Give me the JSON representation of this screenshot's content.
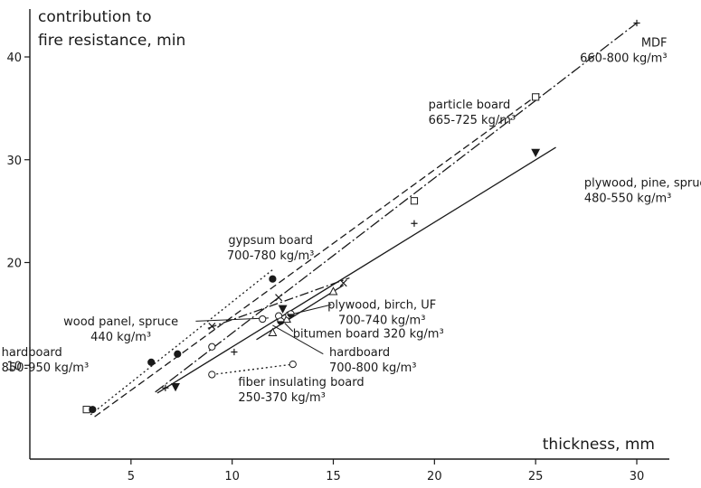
{
  "chart_data": {
    "type": "scatter",
    "ylabel_lines": [
      "contribution to",
      "fire resistance, min"
    ],
    "xlabel": "thickness, mm",
    "xlim": [
      0,
      32
    ],
    "ylim": [
      0,
      45
    ],
    "x_ticks": [
      5,
      10,
      15,
      20,
      25,
      30
    ],
    "y_ticks": [
      10,
      20,
      30,
      40
    ],
    "grid": false,
    "series": [
      {
        "name": "MDF",
        "color": "#1a1a1a",
        "dash": "12 3 2 3",
        "marker": "plus",
        "points": [
          [
            6.7,
            7.8
          ],
          [
            10.1,
            11.3
          ],
          [
            19.0,
            23.8
          ],
          [
            30.0,
            43.3
          ]
        ],
        "line": [
          [
            6.2,
            7.4
          ],
          [
            30.0,
            43.3
          ]
        ]
      },
      {
        "name": "particle board",
        "color": "#1a1a1a",
        "dash": "8 4",
        "marker": "square",
        "points": [
          [
            2.8,
            5.7
          ],
          [
            19.0,
            26.0
          ],
          [
            25.0,
            36.1
          ]
        ],
        "line": [
          [
            3.2,
            5.0
          ],
          [
            25.3,
            36.6
          ]
        ]
      },
      {
        "name": "plywood, pine, spruce",
        "color": "#1a1a1a",
        "dash": "",
        "marker": "triangle-down",
        "points": [
          [
            7.2,
            7.9
          ],
          [
            12.5,
            15.5
          ],
          [
            25.0,
            30.7
          ]
        ],
        "line": [
          [
            6.3,
            7.3
          ],
          [
            26.0,
            31.2
          ]
        ]
      },
      {
        "name": "plywood, birch, UF",
        "color": "#1a1a1a",
        "dash": "",
        "marker": "triangle",
        "points": [
          [
            12.0,
            13.2
          ],
          [
            12.7,
            14.5
          ],
          [
            15.0,
            17.2
          ]
        ],
        "line": [
          [
            11.2,
            12.5
          ],
          [
            15.5,
            17.8
          ]
        ]
      },
      {
        "name": "gypsum board",
        "color": "#1a1a1a",
        "dash": "10 3 2 3",
        "marker": "x",
        "points": [
          [
            9.0,
            13.8
          ],
          [
            12.3,
            16.6
          ],
          [
            15.5,
            18.0
          ]
        ],
        "line": [
          [
            8.8,
            13.6
          ],
          [
            15.8,
            18.5
          ]
        ]
      },
      {
        "name": "hardboard",
        "color": "#1a1a1a",
        "dash": "2 3",
        "marker": "filled-circle",
        "points": [
          [
            3.1,
            5.7
          ],
          [
            6.0,
            10.3
          ],
          [
            7.3,
            11.1
          ],
          [
            12.0,
            18.4
          ]
        ],
        "line": [
          [
            3.0,
            5.2
          ],
          [
            12.0,
            19.3
          ]
        ]
      },
      {
        "name": "fiber insulating board",
        "color": "#1a1a1a",
        "dash": "2 3",
        "marker": "circle",
        "points": [
          [
            9.0,
            9.1
          ],
          [
            13.0,
            10.1
          ]
        ],
        "line": [
          [
            9.0,
            9.1
          ],
          [
            13.0,
            10.1
          ]
        ]
      },
      {
        "name": "wood panel, spruce",
        "color": "#1a1a1a",
        "dash": "",
        "marker": "circle",
        "points": [
          [
            9.0,
            11.8
          ],
          [
            11.5,
            14.5
          ],
          [
            12.3,
            14.8
          ],
          [
            12.8,
            14.9
          ]
        ],
        "line": []
      },
      {
        "name": "bitumen board",
        "color": "#1a1a1a",
        "dash": "",
        "marker": "half-circle",
        "points": [
          [
            12.4,
            14.3
          ],
          [
            12.9,
            15.0
          ]
        ],
        "line": []
      }
    ],
    "annotations": [
      {
        "id": "mdf",
        "lines": [
          "MDF",
          "660-800 kg/m³"
        ],
        "anchor": "end",
        "at": [
          31.5,
          41.0
        ],
        "leader": []
      },
      {
        "id": "particle",
        "lines": [
          "particle board",
          "665-725 kg/m³"
        ],
        "anchor": "start",
        "at": [
          19.7,
          35.0
        ],
        "leader": []
      },
      {
        "id": "plywood-pine",
        "lines": [
          "plywood, pine, spruce",
          "480-550 kg/m³"
        ],
        "anchor": "start",
        "at": [
          27.4,
          27.4
        ],
        "leader": []
      },
      {
        "id": "gypsum",
        "lines": [
          "gypsum board",
          "700-780 kg/m³"
        ],
        "anchor": "middle",
        "at": [
          11.9,
          21.8
        ],
        "leader": []
      },
      {
        "id": "plywood-birch",
        "lines": [
          "plywood, birch, UF",
          "700-740 kg/m³"
        ],
        "anchor": "middle",
        "at": [
          17.4,
          15.5
        ],
        "leader": [
          [
            14.9,
            15.9
          ],
          [
            12.8,
            14.9
          ]
        ]
      },
      {
        "id": "wood-panel",
        "lines": [
          "wood panel, spruce",
          "440 kg/m³"
        ],
        "anchor": "middle",
        "at": [
          4.5,
          13.9
        ],
        "leader": [
          [
            8.2,
            14.3
          ],
          [
            11.8,
            14.6
          ]
        ]
      },
      {
        "id": "bitumen",
        "lines": [
          "bitumen board 320 kg/m³"
        ],
        "anchor": "start",
        "at": [
          13.0,
          12.7
        ],
        "leader": [
          [
            13.0,
            13.3
          ],
          [
            12.6,
            14.1
          ]
        ]
      },
      {
        "id": "hardboard-right",
        "lines": [
          "hardboard",
          "700-800 kg/m³"
        ],
        "anchor": "start",
        "at": [
          14.8,
          10.9
        ],
        "leader": [
          [
            14.5,
            11.1
          ],
          [
            12.0,
            13.9
          ]
        ]
      },
      {
        "id": "hardboard-left",
        "lines": [
          "hardboard",
          "850-950 kg/m³"
        ],
        "anchor": "start",
        "at": [
          -1.4,
          10.9
        ],
        "leader": []
      },
      {
        "id": "fiber",
        "lines": [
          "fiber insulating board",
          "250-370 kg/m³"
        ],
        "anchor": "start",
        "at": [
          10.3,
          8.0
        ],
        "leader": []
      }
    ]
  }
}
